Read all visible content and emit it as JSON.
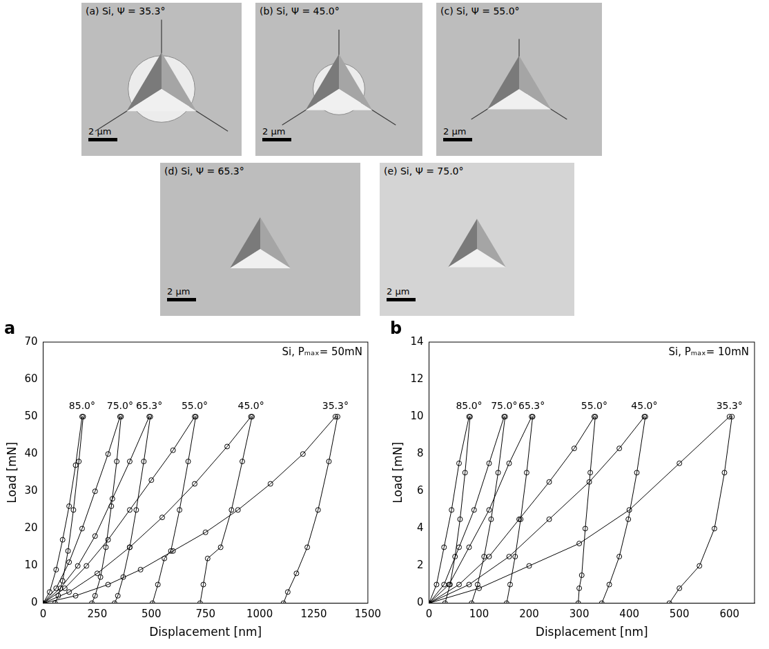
{
  "images": [
    {
      "caption": "(a) Si, Ψ = 35.3°",
      "scale_bar": "2 µm"
    },
    {
      "caption": "(b) Si, Ψ = 45.0°",
      "scale_bar": "2 µm"
    },
    {
      "caption": "(c) Si, Ψ = 55.0°",
      "scale_bar": "2 µm"
    },
    {
      "caption": "(d) Si, Ψ = 65.3°",
      "scale_bar": "2 µm"
    },
    {
      "caption": "(e) Si, Ψ = 75.0°",
      "scale_bar": "2 µm"
    }
  ],
  "chart_data": [
    {
      "type": "scatter",
      "panel": "a",
      "annotation": "Si, Pₘₐₓ= 50mN",
      "x_label": "Displacement [nm]",
      "y_label": "Load [mN]",
      "xlim": [
        0,
        1500
      ],
      "xticks": [
        0,
        250,
        500,
        750,
        1000,
        1250,
        1500
      ],
      "ylim": [
        0,
        70
      ],
      "yticks": [
        0,
        10,
        20,
        30,
        40,
        50,
        60,
        70
      ],
      "grid": false,
      "marker": "circle",
      "line_style": "solid",
      "series": [
        {
          "name": "85.0°",
          "color": "#000000",
          "x": [
            0,
            30,
            60,
            90,
            120,
            150,
            180,
            185,
            165,
            140,
            115,
            90,
            70,
            55
          ],
          "values": [
            0,
            3,
            9,
            17,
            26,
            37,
            50,
            50,
            38,
            25,
            14,
            6,
            2,
            0
          ]
        },
        {
          "name": "75.0°",
          "color": "#000000",
          "x": [
            0,
            60,
            120,
            180,
            240,
            300,
            355,
            360,
            340,
            315,
            290,
            265,
            240,
            225
          ],
          "values": [
            0,
            4,
            11,
            20,
            30,
            40,
            50,
            50,
            38,
            26,
            15,
            7,
            2,
            0
          ]
        },
        {
          "name": "65.3°",
          "color": "#000000",
          "x": [
            0,
            80,
            160,
            240,
            320,
            400,
            490,
            495,
            465,
            430,
            400,
            370,
            345,
            330
          ],
          "values": [
            0,
            4,
            10,
            18,
            28,
            38,
            50,
            50,
            38,
            25,
            15,
            7,
            2,
            0
          ]
        },
        {
          "name": "55.0°",
          "color": "#000000",
          "x": [
            0,
            100,
            200,
            300,
            400,
            500,
            600,
            700,
            705,
            670,
            630,
            590,
            560,
            530,
            505
          ],
          "values": [
            0,
            4,
            10,
            17,
            25,
            33,
            41,
            50,
            50,
            38,
            25,
            14,
            12,
            5,
            0
          ]
        },
        {
          "name": "45.0°",
          "color": "#000000",
          "x": [
            0,
            120,
            250,
            400,
            550,
            700,
            850,
            960,
            965,
            920,
            870,
            820,
            760,
            740,
            725
          ],
          "values": [
            0,
            3,
            8,
            15,
            23,
            32,
            42,
            50,
            50,
            38,
            25,
            15,
            12,
            5,
            0
          ]
        },
        {
          "name": "35.3°",
          "color": "#000000",
          "x": [
            0,
            150,
            300,
            450,
            600,
            750,
            900,
            1050,
            1200,
            1350,
            1360,
            1320,
            1270,
            1220,
            1170,
            1130,
            1110
          ],
          "values": [
            0,
            2,
            5,
            9,
            14,
            19,
            25,
            32,
            40,
            50,
            50,
            38,
            25,
            15,
            8,
            3,
            0
          ]
        }
      ]
    },
    {
      "type": "scatter",
      "panel": "b",
      "annotation": "Si, Pₘₐₓ= 10mN",
      "x_label": "Displacement [nm]",
      "y_label": "Load [mN]",
      "xlim": [
        0,
        650
      ],
      "xticks": [
        0,
        100,
        200,
        300,
        400,
        500,
        600
      ],
      "ylim": [
        0,
        14
      ],
      "yticks": [
        0,
        2,
        4,
        6,
        8,
        10,
        12,
        14
      ],
      "grid": false,
      "marker": "circle",
      "line_style": "solid",
      "series": [
        {
          "name": "85.0°",
          "color": "#000000",
          "x": [
            0,
            15,
            30,
            45,
            60,
            80,
            82,
            72,
            62,
            52,
            42,
            32
          ],
          "values": [
            0,
            1,
            3,
            5,
            7.5,
            10,
            10,
            7,
            4.5,
            2.5,
            1,
            0
          ]
        },
        {
          "name": "75.0°",
          "color": "#000000",
          "x": [
            0,
            30,
            60,
            90,
            120,
            150,
            152,
            138,
            124,
            110,
            97,
            85
          ],
          "values": [
            0,
            1,
            3,
            5,
            7.5,
            10,
            10,
            7,
            4.5,
            2.5,
            1,
            0
          ]
        },
        {
          "name": "65.3°",
          "color": "#000000",
          "x": [
            0,
            40,
            80,
            120,
            160,
            205,
            207,
            195,
            183,
            172,
            162,
            155
          ],
          "values": [
            0,
            1,
            3,
            5,
            7.5,
            10,
            10,
            7,
            4.5,
            2.5,
            1,
            0
          ]
        },
        {
          "name": "55.0°",
          "color": "#000000",
          "x": [
            0,
            60,
            120,
            180,
            240,
            290,
            330,
            332,
            322,
            312,
            305,
            300,
            298
          ],
          "values": [
            0,
            1,
            2.5,
            4.5,
            6.5,
            8.3,
            10,
            10,
            7,
            4,
            1.5,
            0.8,
            0
          ]
        },
        {
          "name": "45.0°",
          "color": "#000000",
          "x": [
            0,
            80,
            160,
            240,
            320,
            380,
            430,
            432,
            415,
            398,
            380,
            360,
            345
          ],
          "values": [
            0,
            1,
            2.5,
            4.5,
            6.5,
            8.3,
            10,
            10,
            7,
            4.5,
            2.5,
            1,
            0
          ]
        },
        {
          "name": "35.3°",
          "color": "#000000",
          "x": [
            0,
            100,
            200,
            300,
            400,
            500,
            600,
            605,
            590,
            570,
            540,
            500,
            480
          ],
          "values": [
            0,
            0.8,
            2,
            3.2,
            5,
            7.5,
            10,
            10,
            7,
            4,
            2,
            0.8,
            0
          ]
        }
      ]
    }
  ]
}
